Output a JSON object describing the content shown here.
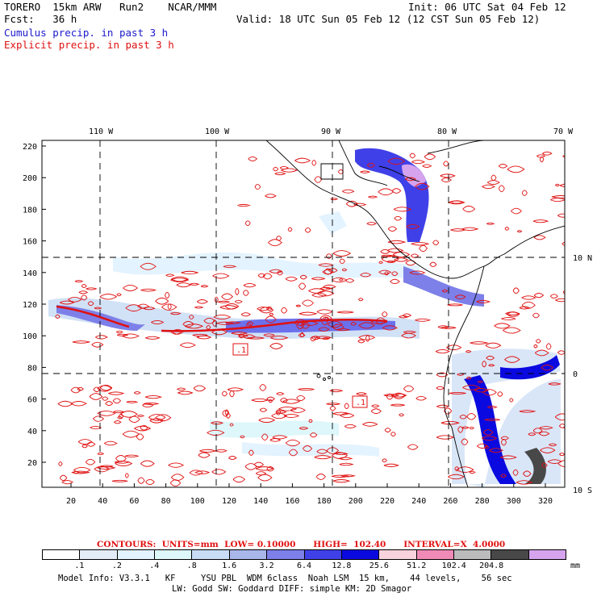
{
  "header": {
    "line1_left": "TORERO  15km ARW   Run2    NCAR/MMM",
    "line1_right": "Init: 06 UTC Sat 04 Feb 12",
    "line2_left": "Fcst:   36 h",
    "line2_right": "Valid: 18 UTC Sun 05 Feb 12 (12 CST Sun 05 Feb 12)",
    "line3": "Cumulus precip. in past 3 h",
    "line4": "Explicit precip. in past 3 h"
  },
  "map": {
    "top_lon_labels": [
      "110 W",
      "100 W",
      "90 W",
      "80 W",
      "70 W"
    ],
    "right_lat_labels": [
      "10 N",
      "0",
      "10 S"
    ],
    "y_ticks": [
      "20",
      "40",
      "60",
      "80",
      "100",
      "120",
      "140",
      "160",
      "180",
      "200",
      "220"
    ],
    "x_ticks": [
      "20",
      "40",
      "60",
      "80",
      "100",
      "120",
      "140",
      "160",
      "180",
      "200",
      "220",
      "240",
      "260",
      "280",
      "300",
      "320"
    ],
    "contour_labels": [
      ".1",
      ".1"
    ],
    "colors": {
      "explicit_contour": "#e01010",
      "coast": "#000000",
      "grid": "#000000"
    }
  },
  "contours_line": {
    "label": "CONTOURS:  UNITS=mm  LOW= 0.10000      HIGH=  102.40      INTERVAL=X  4.0000"
  },
  "legend": {
    "labels": [
      ".1",
      ".2",
      ".4",
      ".8",
      "1.6",
      "3.2",
      "6.4",
      "12.8",
      "25.6",
      "51.2",
      "102.4",
      "204.8"
    ],
    "unit": "mm",
    "colors": [
      "#ffffff",
      "#e4ecf7",
      "#e3f3ff",
      "#ddf7fb",
      "#c9dcf5",
      "#a9b6ea",
      "#7d80e8",
      "#4040e8",
      "#0a0ae0",
      "#f8d2dc",
      "#f08bb8",
      "#bcbcbc",
      "#484848",
      "#d6a3ee"
    ]
  },
  "footer": {
    "line1": "Model Info: V3.3.1   KF     YSU PBL  WDM 6class  Noah LSM  15 km,    44 levels,    56 sec",
    "line2": "LW: Godd SW: Goddard DIFF: simple KM: 2D Smagor"
  }
}
